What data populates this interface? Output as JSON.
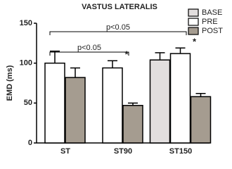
{
  "chart_data": {
    "type": "bar",
    "title": "VASTUS LATERALIS",
    "y_label": "EMD (ms)",
    "categories": [
      "ST",
      "ST90",
      "ST150"
    ],
    "series": [
      {
        "name": "BASE",
        "color": "#e2dede",
        "values": [
          null,
          null,
          104
        ],
        "errors": [
          null,
          null,
          9
        ]
      },
      {
        "name": "PRE",
        "color": "#ffffff",
        "values": [
          100,
          94,
          112
        ],
        "errors": [
          15,
          9,
          7
        ]
      },
      {
        "name": "POST",
        "color": "#a59c90",
        "values": [
          82,
          47,
          58
        ],
        "errors": [
          12,
          3,
          4
        ]
      }
    ],
    "ylim": [
      0,
      150
    ],
    "yticks": [
      0,
      50,
      100,
      150
    ],
    "annotations": [
      "p<0.05",
      "p<0.05",
      "*",
      "*"
    ]
  }
}
